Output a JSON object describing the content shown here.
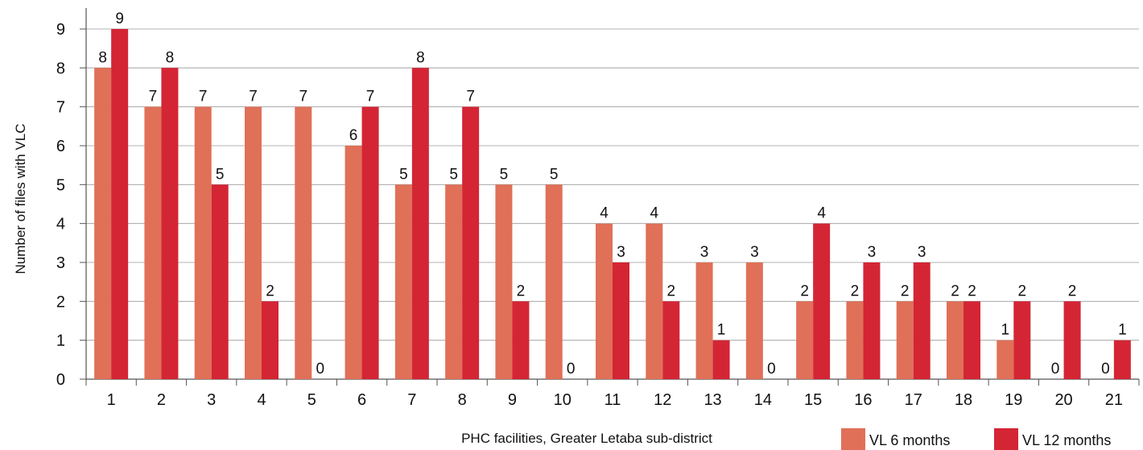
{
  "chart_data": {
    "type": "bar",
    "xlabel": "PHC facilities, Greater Letaba sub-district",
    "ylabel": "Number of files with VLC",
    "ylim": [
      0,
      9
    ],
    "yticks": [
      "0",
      "1",
      "2",
      "3",
      "4",
      "5",
      "6",
      "7",
      "8",
      "9"
    ],
    "categories": [
      "1",
      "2",
      "3",
      "4",
      "5",
      "6",
      "7",
      "8",
      "9",
      "10",
      "11",
      "12",
      "13",
      "14",
      "15",
      "16",
      "17",
      "18",
      "19",
      "20",
      "21"
    ],
    "series": [
      {
        "name": "VL 6 months",
        "color": "#e07058",
        "values": [
          8,
          7,
          7,
          7,
          7,
          6,
          5,
          5,
          5,
          5,
          4,
          4,
          3,
          3,
          2,
          2,
          2,
          2,
          1,
          0,
          0
        ],
        "labels": [
          "8",
          "7",
          "7",
          "7",
          "7",
          "6",
          "5",
          "5",
          "5",
          "5",
          "4",
          "4",
          "3",
          "3",
          "2",
          "2",
          "2",
          "2",
          "1",
          "0",
          "0"
        ]
      },
      {
        "name": "VL 12 months",
        "color": "#d42535",
        "values": [
          9,
          8,
          5,
          2,
          0,
          7,
          8,
          7,
          2,
          0,
          3,
          2,
          1,
          0,
          4,
          3,
          3,
          2,
          2,
          2,
          1
        ],
        "labels": [
          "9",
          "8",
          "5",
          "2",
          "0",
          "7",
          "8",
          "7",
          "2",
          "0",
          "3",
          "2",
          "1",
          "0",
          "4",
          "3",
          "3",
          "2",
          "2",
          "2",
          "1"
        ]
      }
    ],
    "grid": true,
    "legend_position": "bottom-right"
  }
}
